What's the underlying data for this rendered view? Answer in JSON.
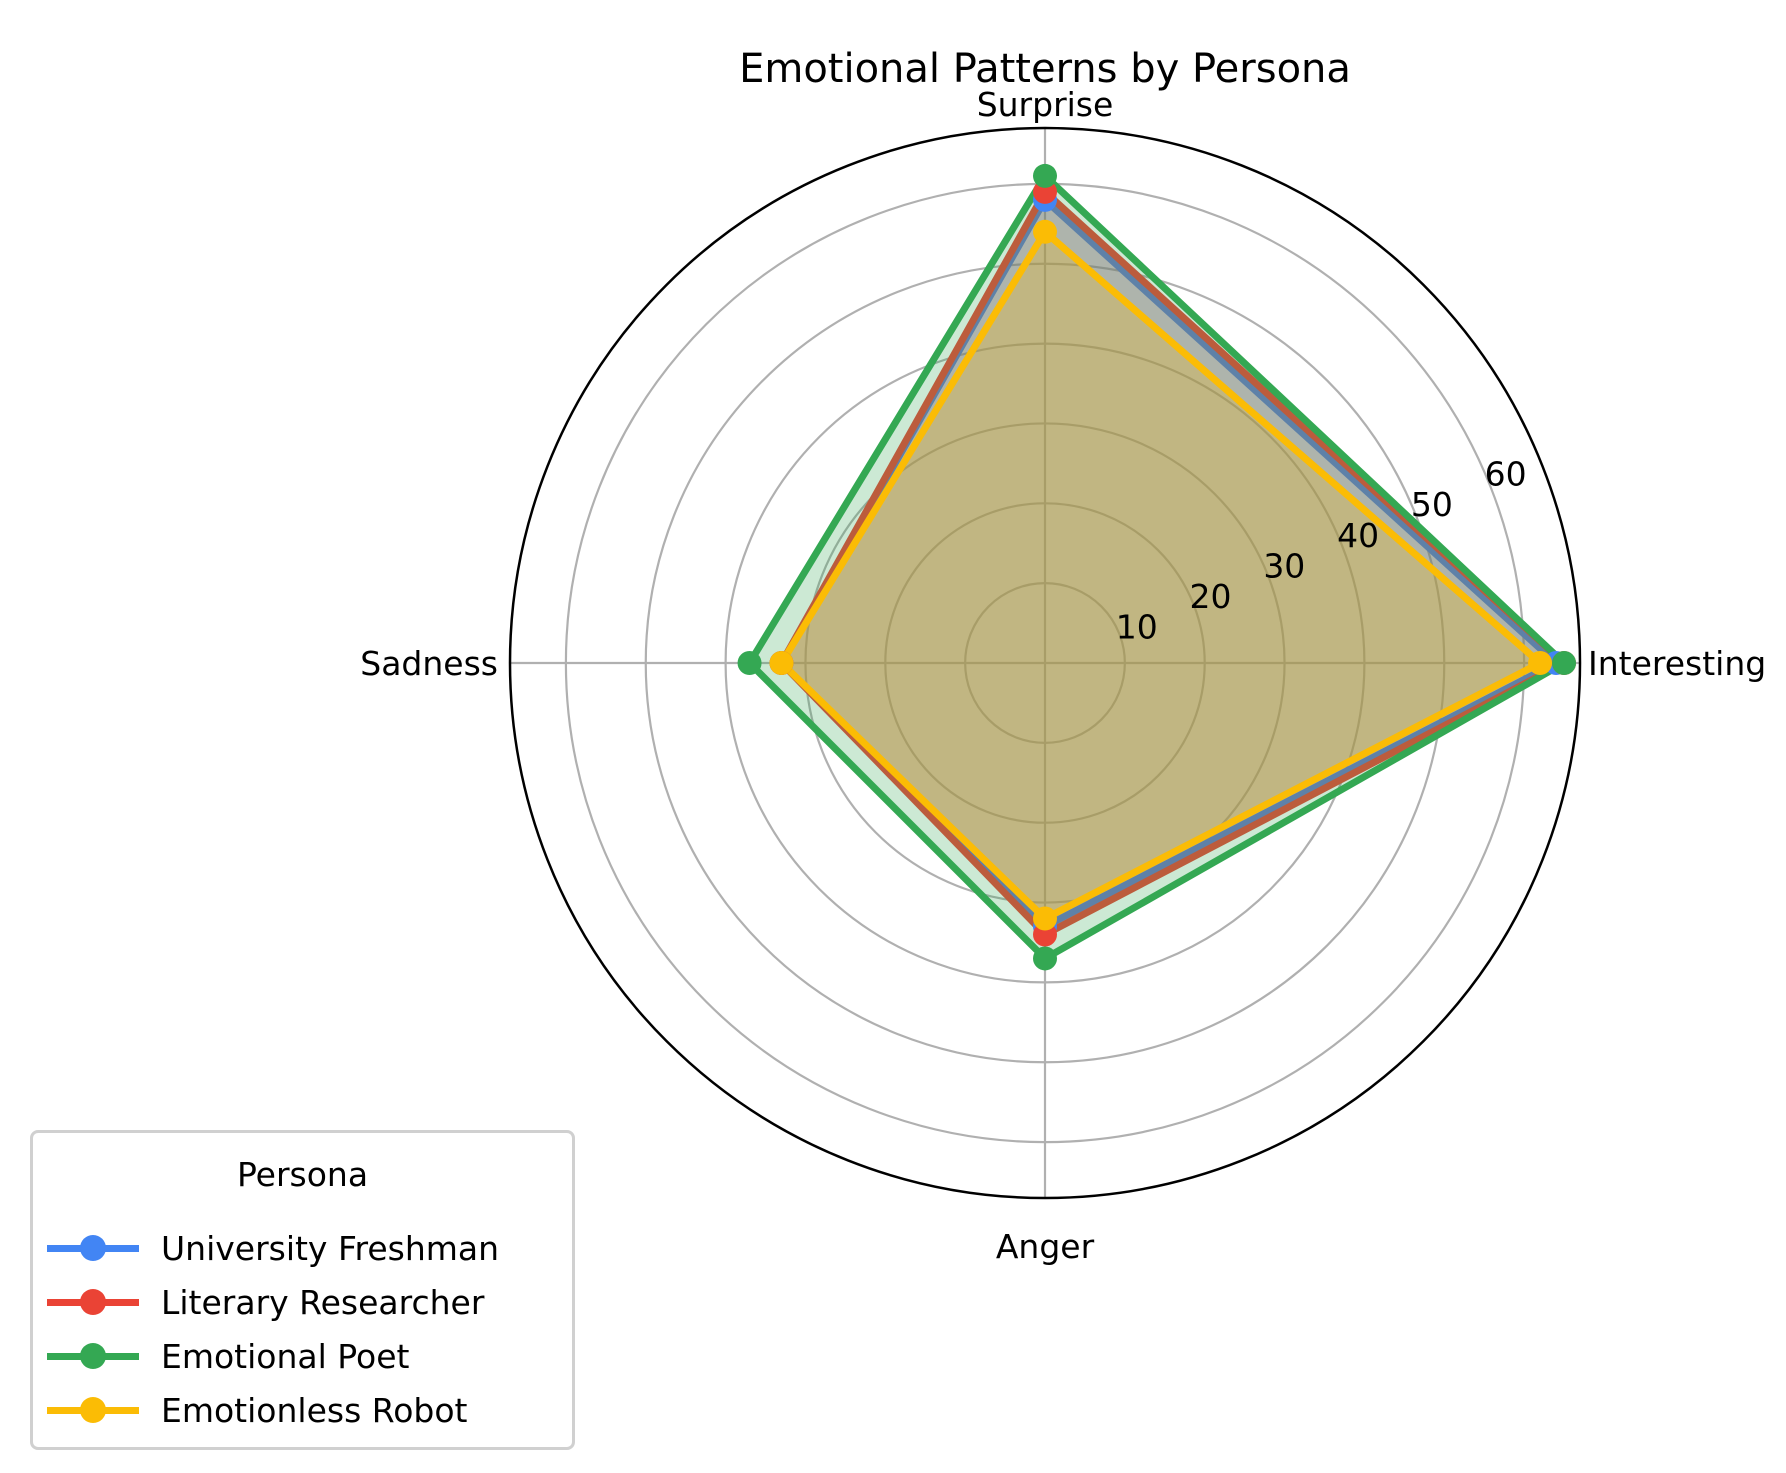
{
  "chart_data": {
    "type": "radar",
    "title": "Emotional Patterns by Persona",
    "axes": [
      "Interesting",
      "Surprise",
      "Sadness",
      "Anger"
    ],
    "radial_ticks": [
      10,
      20,
      30,
      40,
      50,
      60
    ],
    "rlim": [
      0,
      67
    ],
    "grid": true,
    "legend": {
      "title": "Persona",
      "placement": "bottom-left"
    },
    "series": [
      {
        "name": "University Freshman",
        "color": "#4285F4",
        "values": [
          64,
          58,
          33,
          33
        ]
      },
      {
        "name": "Literary Researcher",
        "color": "#EA4335",
        "values": [
          65,
          59,
          33,
          34
        ]
      },
      {
        "name": "Emotional Poet",
        "color": "#34A853",
        "values": [
          65,
          61,
          37,
          37
        ]
      },
      {
        "name": "Emotionless Robot",
        "color": "#FBBC05",
        "values": [
          62,
          54,
          33,
          32
        ]
      }
    ]
  }
}
